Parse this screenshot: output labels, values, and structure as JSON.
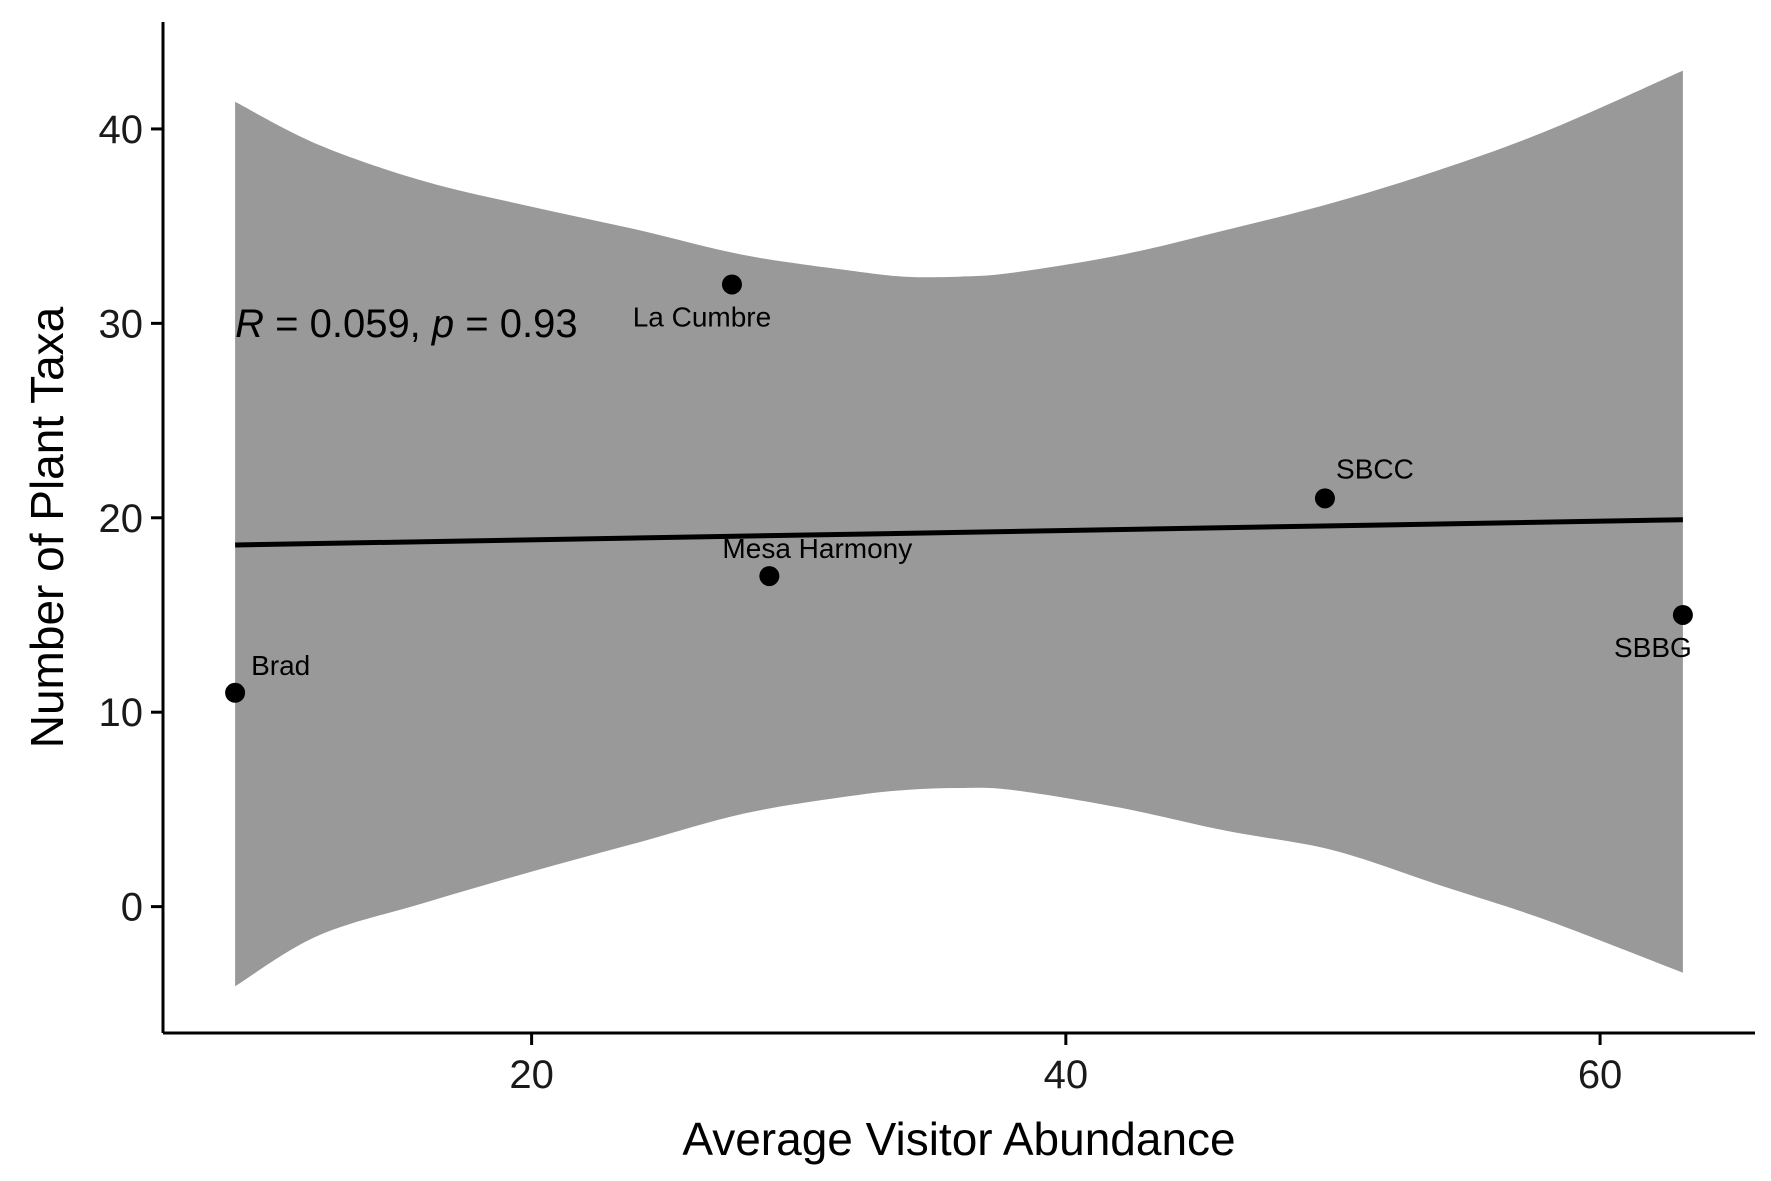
{
  "chart_data": {
    "type": "scatter",
    "xlabel": "Average Visitor Abundance",
    "ylabel": "Number of Plant Taxa",
    "xlim": [
      6.2,
      65.8
    ],
    "ylim": [
      -6.5,
      45.5
    ],
    "x_ticks": [
      20,
      40,
      60
    ],
    "y_ticks": [
      0,
      10,
      20,
      30,
      40
    ],
    "grid": false,
    "points": [
      {
        "label": "Brad",
        "x": 8.9,
        "y": 11
      },
      {
        "label": "La Cumbre",
        "x": 27.5,
        "y": 32
      },
      {
        "label": "Mesa Harmony",
        "x": 28.9,
        "y": 17
      },
      {
        "label": "SBCC",
        "x": 49.7,
        "y": 21
      },
      {
        "label": "SBBG",
        "x": 63.1,
        "y": 15
      }
    ],
    "regression": {
      "x": [
        8.9,
        63.1
      ],
      "y": [
        18.6,
        19.9
      ]
    },
    "confidence_band": {
      "x": [
        8.9,
        12,
        16,
        20,
        24,
        28,
        32,
        34,
        36,
        38,
        42,
        46,
        50,
        54,
        58,
        63.1
      ],
      "upper": [
        41.4,
        39.2,
        37.3,
        36.0,
        34.8,
        33.5,
        32.7,
        32.4,
        32.4,
        32.6,
        33.5,
        34.8,
        36.2,
        37.9,
        39.9,
        43.0
      ],
      "lower": [
        -4.1,
        -1.5,
        0.2,
        1.8,
        3.3,
        4.8,
        5.7,
        6.0,
        6.1,
        6.0,
        5.1,
        3.9,
        2.9,
        1.1,
        -0.7,
        -3.4
      ]
    },
    "annotation": {
      "r_symbol": "R",
      "r_text": " = 0.059, ",
      "p_symbol": "p",
      "p_text": " = 0.93"
    },
    "colors": {
      "band": "#999999",
      "line": "#000000",
      "points": "#000000",
      "axis": "#000000"
    }
  }
}
